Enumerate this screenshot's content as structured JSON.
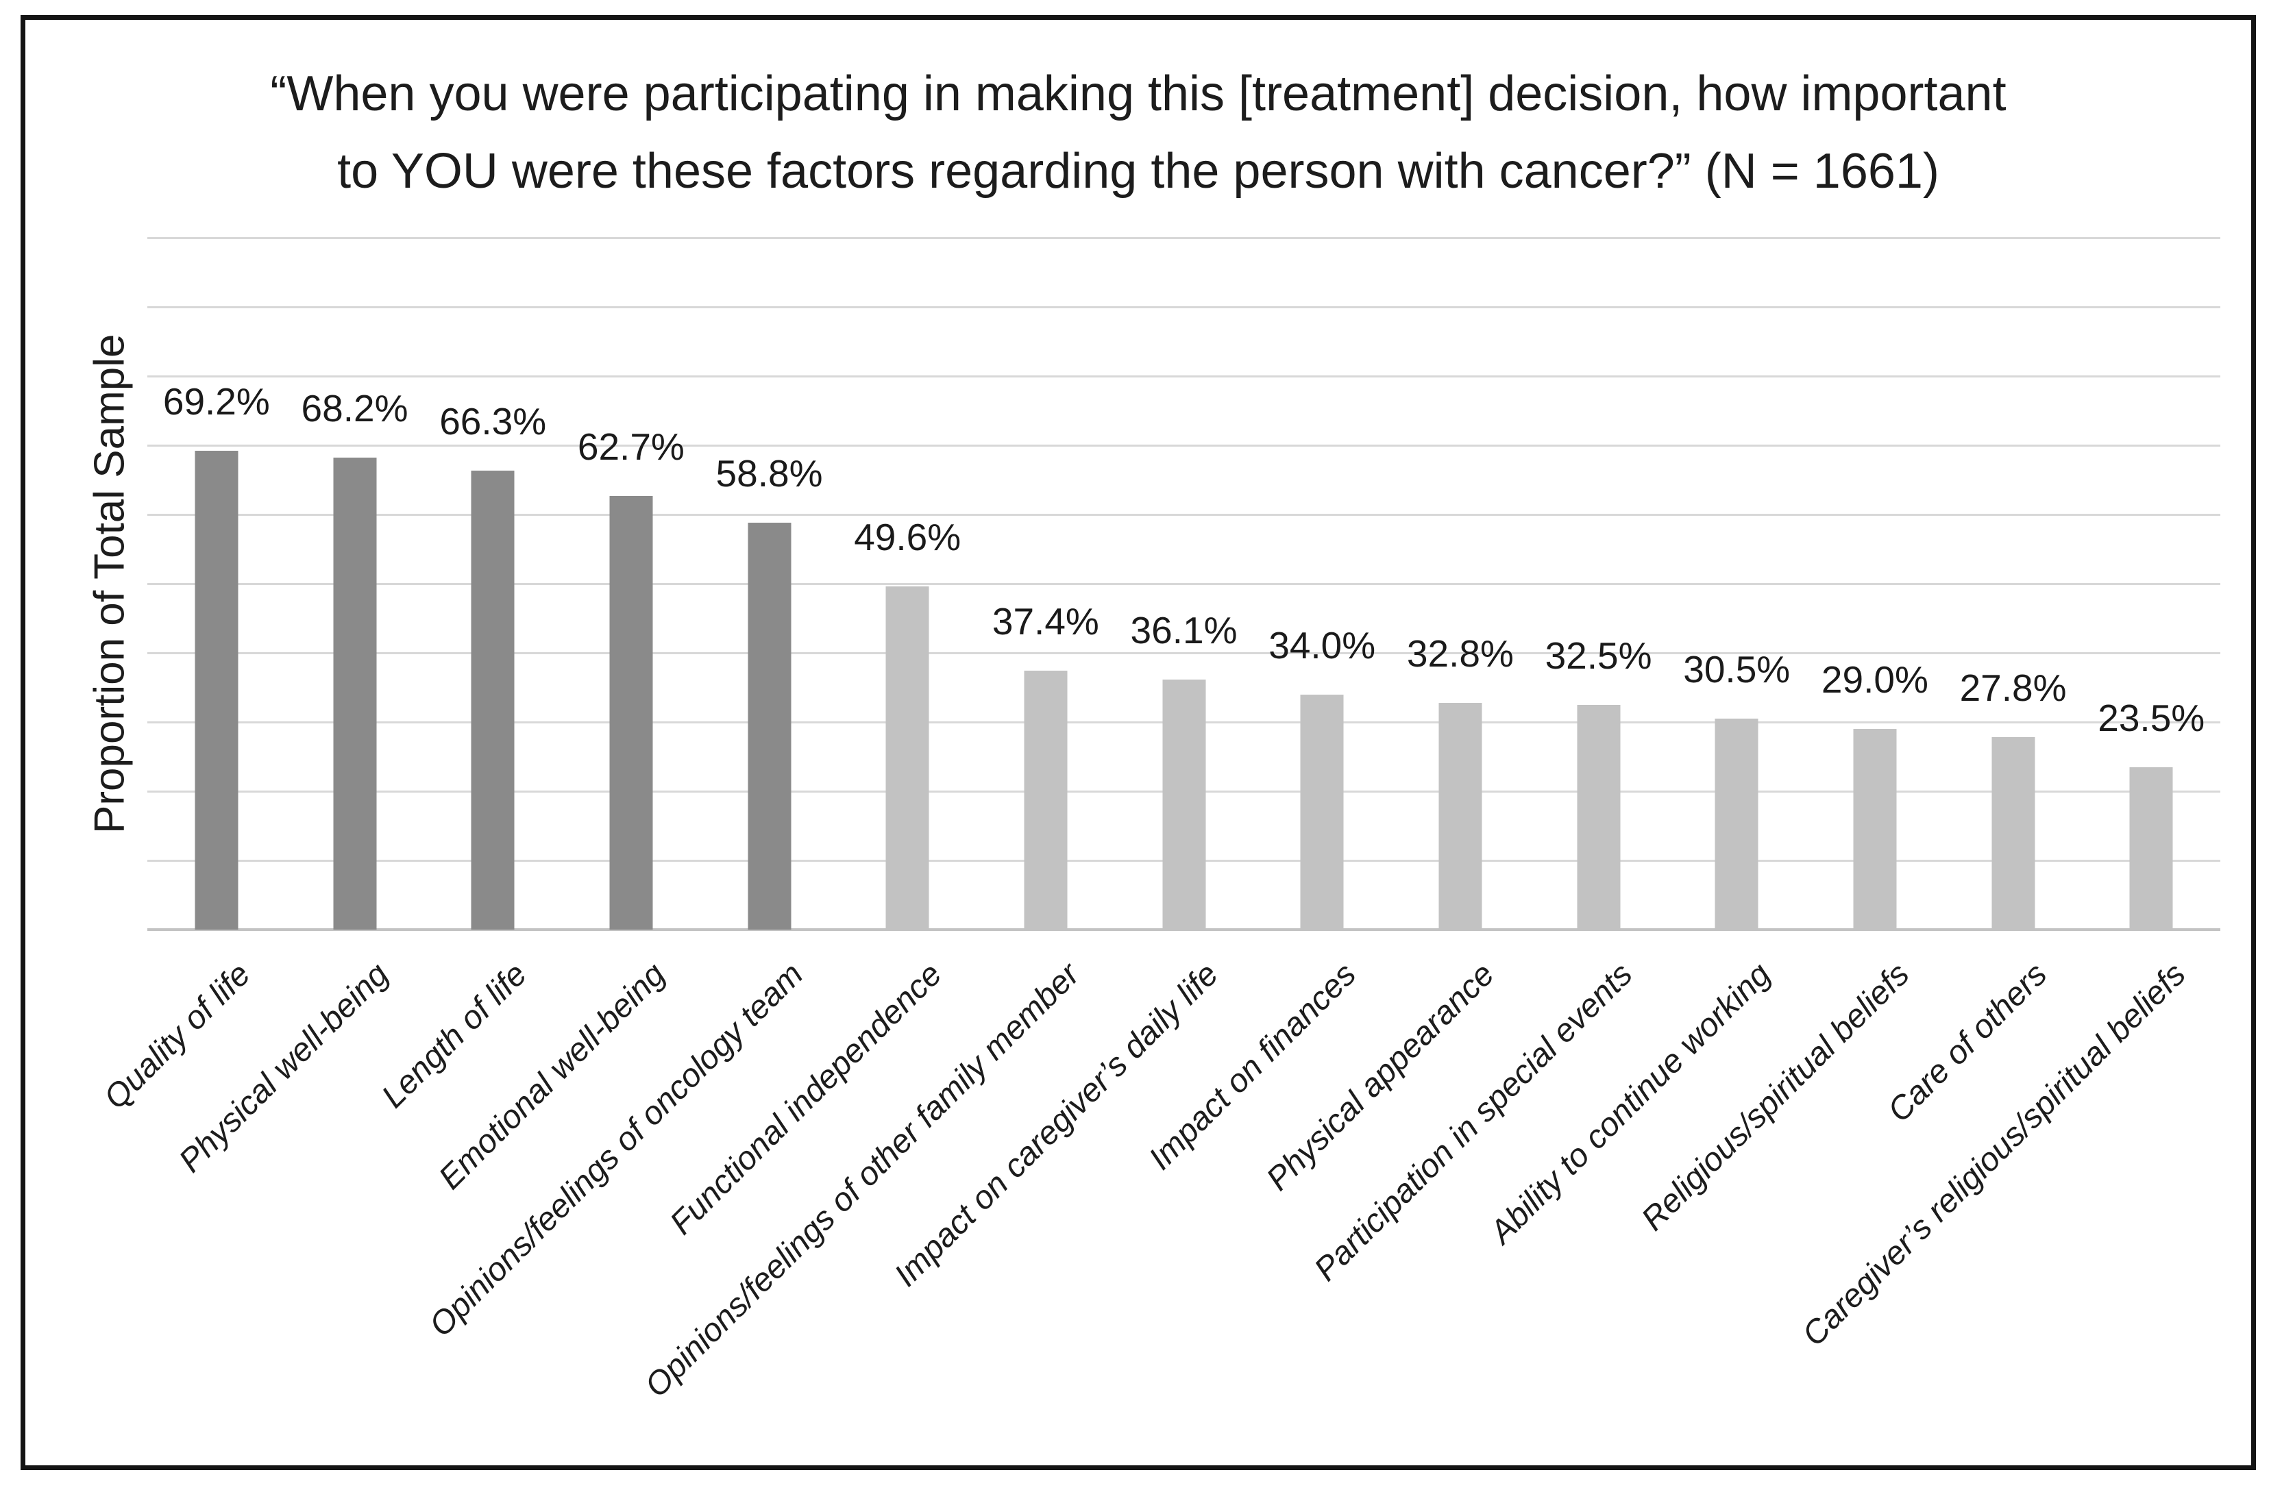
{
  "figure": {
    "title_line1": "“When you were participating in making this [treatment] decision, how important",
    "title_line2": "to YOU were these factors regarding the person with cancer?” (N = 1661)"
  },
  "chart_data": {
    "type": "bar",
    "title": "“When you were participating in making this [treatment] decision, how important to YOU were these factors regarding the person with cancer?” (N = 1661)",
    "xlabel": "",
    "ylabel": "Proportion of Total Sample",
    "ylim": [
      0,
      100
    ],
    "gridline_interval": 10,
    "grid": "horizontal",
    "legend_position": "none",
    "value_label_suffix": "%",
    "categories": [
      "Quality of life",
      "Physical well-being",
      "Length of life",
      "Emotional well-being",
      "Opinions/feelings of oncology team",
      "Functional independence",
      "Opinions/feelings of other family member",
      "Impact on caregiver’s daily life",
      "Impact on finances",
      "Physical appearance",
      "Participation in special events",
      "Ability to continue working",
      "Religious/spiritual beliefs",
      "Care of others",
      "Caregiver’s religious/spiritual beliefs"
    ],
    "values": [
      69.2,
      68.2,
      66.3,
      62.7,
      58.8,
      49.6,
      37.4,
      36.1,
      34.0,
      32.8,
      32.5,
      30.5,
      29.0,
      27.8,
      23.5
    ],
    "colors": {
      "dark_bar": "#8a8a8a",
      "light_bar": "#c2c2c2",
      "dark_bar_count": 5,
      "gridline": "#d8d8d8",
      "axis_line": "#c3c3c3",
      "text": "#1a1a1a"
    }
  }
}
